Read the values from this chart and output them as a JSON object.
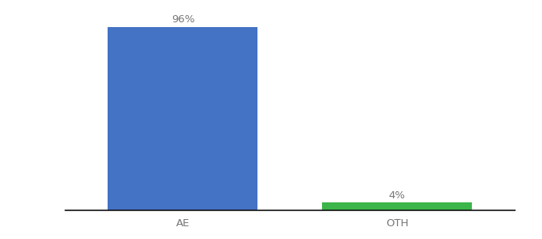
{
  "categories": [
    "AE",
    "OTH"
  ],
  "values": [
    96,
    4
  ],
  "bar_colors": [
    "#4472c4",
    "#3cb54a"
  ],
  "label_texts": [
    "96%",
    "4%"
  ],
  "ylim": [
    0,
    100
  ],
  "background_color": "#ffffff",
  "bar_width": 0.7,
  "label_fontsize": 9.5,
  "tick_fontsize": 9.5,
  "label_color": "#777777",
  "tick_color": "#777777"
}
